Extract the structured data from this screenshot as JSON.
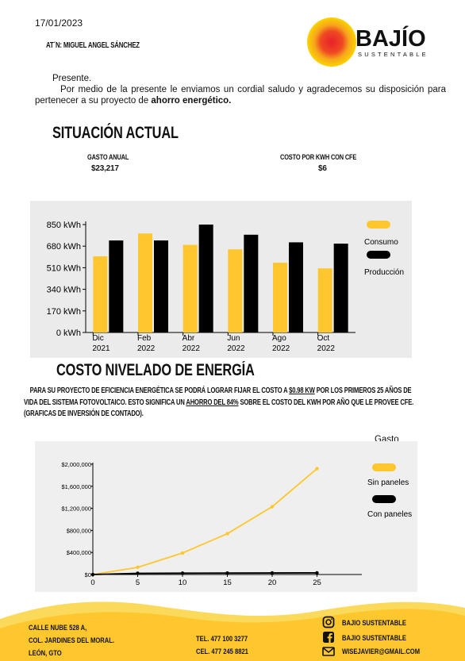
{
  "header": {
    "date": "17/01/2023",
    "attention": "AT´N: MIGUEL ANGEL SÁNCHEZ",
    "logo": {
      "name": "BAJÍO",
      "tagline": "SUSTENTABLE",
      "colors": [
        "#e8212a",
        "#f7a51c",
        "#fbd400"
      ]
    }
  },
  "letter": {
    "greeting": "Presente.",
    "body_start": "Por medio de la presente le enviamos un cordial saludo y agradecemos su disposición para pertenecer a su proyecto de ",
    "body_bold": "ahorro energético."
  },
  "situacion": {
    "title": "SITUACIÓN ACTUAL",
    "gasto_label": "GASTO ANUAL",
    "gasto_value": "$23,217",
    "costo_label": "COSTO POR KWH CON CFE",
    "costo_value": "$6"
  },
  "costo_nivelado": {
    "title": "COSTO NIVELADO DE ENERGÍA",
    "p1": "PARA SU PROYECTO DE EFICIENCIA ENERGÉTICA SE PODRÁ LOGRAR FIJAR EL COSTO A ",
    "u1": "$0.98 KW",
    "p2": " POR LOS PRIMEROS 25 AÑOS DE",
    "p3": "VIDA DEL SISTEMA FOTOVOLTAICO. ESTO SIGNIFICA UN ",
    "u2": "AHORRO DEL 84%",
    "p4": " SOBRE EL COSTO DEL KWH POR AÑO QUE LE PROVEE CFE.",
    "p5": "(GRAFICAS DE INVERSIÓN DE CONTADO)."
  },
  "chart_data": [
    {
      "type": "bar",
      "categories": [
        "Dic 2021",
        "Feb 2022",
        "Abr 2022",
        "Jun 2022",
        "Ago 2022",
        "Oct 2022"
      ],
      "category_lines": [
        [
          "Dic",
          "2021"
        ],
        [
          "Feb",
          "2022"
        ],
        [
          "Abr",
          "2022"
        ],
        [
          "Jun",
          "2022"
        ],
        [
          "Ago",
          "2022"
        ],
        [
          "Oct",
          "2022"
        ]
      ],
      "series": [
        {
          "name": "Consumo",
          "color": "#fdc72d",
          "values": [
            600,
            780,
            690,
            655,
            550,
            505
          ]
        },
        {
          "name": "Producción",
          "color": "#000000",
          "values": [
            725,
            725,
            850,
            770,
            710,
            700
          ]
        }
      ],
      "ylim": [
        0,
        850
      ],
      "yticks": [
        0,
        170,
        340,
        510,
        680,
        850
      ],
      "ytick_labels": [
        "0 kWh",
        "170 kWh",
        "340 kWh",
        "510 kWh",
        "680 kWh",
        "850 kWh"
      ],
      "legend_position": "right",
      "grid": false
    },
    {
      "type": "line",
      "title": "Gasto",
      "x": [
        0,
        5,
        10,
        15,
        20,
        25
      ],
      "series": [
        {
          "name": "Sin paneles",
          "color": "#fdc72d",
          "values": [
            0,
            130000,
            390000,
            740000,
            1230000,
            1920000
          ]
        },
        {
          "name": "Con paneles",
          "color": "#000000",
          "values": [
            0,
            22000,
            24000,
            26000,
            28000,
            30000
          ]
        }
      ],
      "xlim": [
        0,
        30
      ],
      "xticks": [
        0,
        5,
        10,
        15,
        20,
        25
      ],
      "ylim": [
        0,
        2000000
      ],
      "yticks": [
        0,
        400000,
        800000,
        1200000,
        1600000,
        2000000
      ],
      "ytick_labels": [
        "$0",
        "$400,000",
        "$800,000",
        "$1,200,000",
        "$1,600,000",
        "$2,000,000"
      ],
      "legend_position": "right",
      "grid": false
    }
  ],
  "footer": {
    "address1": "CALLE NUBE 528 A,",
    "address2": "COL. JARDINES DEL MORAL.",
    "address3": "LEÓN, GTO",
    "tel": "TEL. 477 100 3277",
    "cel": "CEL. 477 245 8821",
    "instagram": "BAJIO SUSTENTABLE",
    "facebook": "BAJIO SUSTENTABLE",
    "email": "WISEJAVIER@GMAIL.COM",
    "wave_color": "#fdc72d"
  }
}
